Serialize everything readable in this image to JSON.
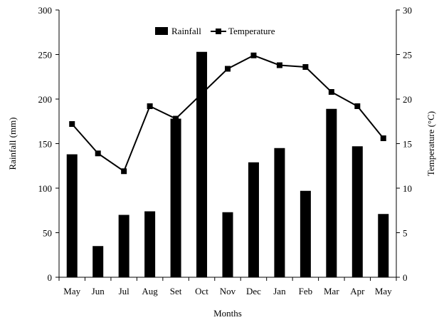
{
  "chart_data": {
    "type": "bar",
    "title": "",
    "xlabel": "Months",
    "ylabel_left": "Rainfall  (mm)",
    "ylabel_right": "Temperature  (°C)",
    "categories": [
      "May",
      "Jun",
      "Jul",
      "Aug",
      "Set",
      "Oct",
      "Nov",
      "Dec",
      "Jan",
      "Feb",
      "Mar",
      "Apr",
      "May"
    ],
    "ylim_left": [
      0,
      300
    ],
    "yticks_left": [
      0,
      50,
      100,
      150,
      200,
      250,
      300
    ],
    "ylim_right": [
      0,
      30
    ],
    "yticks_right": [
      0,
      5,
      10,
      15,
      20,
      25,
      30
    ],
    "grid": false,
    "legend_position": "top-center",
    "series": [
      {
        "name": "Rainfall",
        "type": "bar",
        "axis": "left",
        "color": "#000000",
        "values": [
          138,
          35,
          70,
          74,
          178,
          253,
          73,
          129,
          145,
          97,
          189,
          147,
          71
        ]
      },
      {
        "name": "Temperature",
        "type": "line",
        "axis": "right",
        "color": "#000000",
        "marker": "square",
        "values": [
          17.2,
          13.9,
          11.9,
          19.2,
          17.8,
          20.6,
          23.4,
          24.9,
          23.8,
          23.6,
          20.8,
          19.2,
          15.6
        ]
      }
    ]
  }
}
